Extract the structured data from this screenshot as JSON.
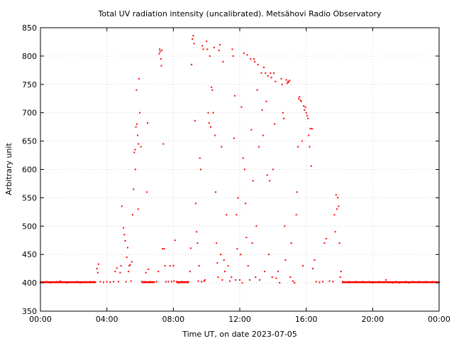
{
  "chart_data": {
    "type": "scatter",
    "title": "Total UV radiation intensity (uncalibrated). Metsähovi Radio Observatory",
    "xlabel": "Time UT, on date 2023-07-05",
    "ylabel": "Arbitrary unit",
    "xlim": [
      "00:00",
      "24:00"
    ],
    "ylim": [
      350,
      850
    ],
    "x_ticks": [
      "00:00",
      "04:00",
      "08:00",
      "12:00",
      "16:00",
      "20:00",
      "00:00"
    ],
    "y_ticks": [
      350,
      400,
      450,
      500,
      550,
      600,
      650,
      700,
      750,
      800,
      850
    ],
    "grid": true,
    "legend": "none",
    "point_color": "#ff0000",
    "series": [
      {
        "x_unit": "hours UT",
        "points": [
          [
            0.0,
            401
          ],
          [
            0.2,
            401
          ],
          [
            0.4,
            402
          ],
          [
            0.6,
            400
          ],
          [
            0.8,
            401
          ],
          [
            1.0,
            402
          ],
          [
            1.2,
            403
          ],
          [
            1.4,
            401
          ],
          [
            1.6,
            400
          ],
          [
            1.8,
            401
          ],
          [
            2.0,
            401
          ],
          [
            2.2,
            402
          ],
          [
            2.4,
            400
          ],
          [
            2.6,
            401
          ],
          [
            2.8,
            401
          ],
          [
            3.0,
            402
          ],
          [
            3.2,
            402
          ],
          [
            3.4,
            425
          ],
          [
            3.45,
            418
          ],
          [
            3.5,
            433
          ],
          [
            3.6,
            402
          ],
          [
            3.8,
            401
          ],
          [
            4.0,
            402
          ],
          [
            4.2,
            401
          ],
          [
            4.4,
            402
          ],
          [
            4.5,
            420
          ],
          [
            4.6,
            426
          ],
          [
            4.7,
            402
          ],
          [
            4.8,
            418
          ],
          [
            4.85,
            430
          ],
          [
            4.9,
            535
          ],
          [
            5.0,
            497
          ],
          [
            5.05,
            485
          ],
          [
            5.1,
            474
          ],
          [
            5.15,
            402
          ],
          [
            5.2,
            445
          ],
          [
            5.25,
            462
          ],
          [
            5.3,
            420
          ],
          [
            5.35,
            430
          ],
          [
            5.4,
            432
          ],
          [
            5.45,
            403
          ],
          [
            5.5,
            437
          ],
          [
            5.55,
            520
          ],
          [
            5.6,
            565
          ],
          [
            5.65,
            630
          ],
          [
            5.7,
            635
          ],
          [
            5.72,
            600
          ],
          [
            5.75,
            675
          ],
          [
            5.78,
            740
          ],
          [
            5.8,
            680
          ],
          [
            5.85,
            660
          ],
          [
            5.88,
            530
          ],
          [
            5.9,
            645
          ],
          [
            5.93,
            760
          ],
          [
            5.98,
            700
          ],
          [
            6.05,
            640
          ],
          [
            6.1,
            402
          ],
          [
            6.2,
            401
          ],
          [
            6.3,
            402
          ],
          [
            6.35,
            418
          ],
          [
            6.4,
            560
          ],
          [
            6.45,
            682
          ],
          [
            6.5,
            424
          ],
          [
            6.6,
            402
          ],
          [
            6.8,
            401
          ],
          [
            7.0,
            402
          ],
          [
            7.1,
            420
          ],
          [
            7.15,
            804
          ],
          [
            7.18,
            812
          ],
          [
            7.2,
            808
          ],
          [
            7.25,
            795
          ],
          [
            7.28,
            783
          ],
          [
            7.3,
            810
          ],
          [
            7.35,
            460
          ],
          [
            7.4,
            645
          ],
          [
            7.45,
            460
          ],
          [
            7.5,
            430
          ],
          [
            7.55,
            402
          ],
          [
            7.7,
            402
          ],
          [
            7.8,
            430
          ],
          [
            7.9,
            402
          ],
          [
            8.0,
            430
          ],
          [
            8.05,
            403
          ],
          [
            8.1,
            475
          ],
          [
            8.2,
            402
          ],
          [
            8.3,
            400
          ],
          [
            8.5,
            402
          ],
          [
            8.7,
            401
          ],
          [
            8.9,
            402
          ],
          [
            9.0,
            420
          ],
          [
            9.05,
            461
          ],
          [
            9.1,
            785
          ],
          [
            9.15,
            830
          ],
          [
            9.2,
            836
          ],
          [
            9.25,
            822
          ],
          [
            9.3,
            686
          ],
          [
            9.35,
            540
          ],
          [
            9.4,
            490
          ],
          [
            9.45,
            470
          ],
          [
            9.5,
            403
          ],
          [
            9.55,
            430
          ],
          [
            9.6,
            620
          ],
          [
            9.65,
            600
          ],
          [
            9.7,
            402
          ],
          [
            9.75,
            818
          ],
          [
            9.8,
            812
          ],
          [
            9.85,
            403
          ],
          [
            9.9,
            405
          ],
          [
            10.0,
            826
          ],
          [
            10.05,
            812
          ],
          [
            10.1,
            700
          ],
          [
            10.15,
            682
          ],
          [
            10.2,
            800
          ],
          [
            10.25,
            675
          ],
          [
            10.3,
            745
          ],
          [
            10.35,
            740
          ],
          [
            10.4,
            700
          ],
          [
            10.45,
            815
          ],
          [
            10.5,
            660
          ],
          [
            10.55,
            560
          ],
          [
            10.6,
            470
          ],
          [
            10.65,
            435
          ],
          [
            10.7,
            410
          ],
          [
            10.75,
            810
          ],
          [
            10.8,
            820
          ],
          [
            10.85,
            450
          ],
          [
            10.9,
            640
          ],
          [
            10.95,
            405
          ],
          [
            11.0,
            790
          ],
          [
            11.05,
            440
          ],
          [
            11.1,
            420
          ],
          [
            11.2,
            520
          ],
          [
            11.3,
            430
          ],
          [
            11.4,
            403
          ],
          [
            11.5,
            410
          ],
          [
            11.55,
            812
          ],
          [
            11.6,
            800
          ],
          [
            11.65,
            655
          ],
          [
            11.7,
            730
          ],
          [
            11.75,
            405
          ],
          [
            11.8,
            520
          ],
          [
            11.85,
            460
          ],
          [
            11.9,
            550
          ],
          [
            12.0,
            405
          ],
          [
            12.05,
            450
          ],
          [
            12.1,
            710
          ],
          [
            12.15,
            400
          ],
          [
            12.2,
            620
          ],
          [
            12.25,
            805
          ],
          [
            12.3,
            600
          ],
          [
            12.35,
            540
          ],
          [
            12.4,
            480
          ],
          [
            12.45,
            802
          ],
          [
            12.5,
            430
          ],
          [
            12.6,
            405
          ],
          [
            12.65,
            795
          ],
          [
            12.7,
            670
          ],
          [
            12.75,
            470
          ],
          [
            12.8,
            580
          ],
          [
            12.85,
            795
          ],
          [
            12.9,
            790
          ],
          [
            12.95,
            410
          ],
          [
            13.0,
            500
          ],
          [
            13.05,
            740
          ],
          [
            13.1,
            785
          ],
          [
            13.15,
            640
          ],
          [
            13.2,
            405
          ],
          [
            13.3,
            770
          ],
          [
            13.35,
            705
          ],
          [
            13.4,
            660
          ],
          [
            13.45,
            780
          ],
          [
            13.5,
            420
          ],
          [
            13.55,
            770
          ],
          [
            13.6,
            720
          ],
          [
            13.65,
            590
          ],
          [
            13.7,
            765
          ],
          [
            13.75,
            450
          ],
          [
            13.8,
            580
          ],
          [
            13.85,
            770
          ],
          [
            13.9,
            762
          ],
          [
            13.95,
            410
          ],
          [
            14.0,
            600
          ],
          [
            14.05,
            770
          ],
          [
            14.1,
            680
          ],
          [
            14.15,
            755
          ],
          [
            14.2,
            408
          ],
          [
            14.3,
            420
          ],
          [
            14.4,
            400
          ],
          [
            14.5,
            760
          ],
          [
            14.55,
            750
          ],
          [
            14.6,
            700
          ],
          [
            14.65,
            690
          ],
          [
            14.7,
            500
          ],
          [
            14.75,
            440
          ],
          [
            14.8,
            758
          ],
          [
            14.85,
            752
          ],
          [
            14.9,
            755
          ],
          [
            14.95,
            754
          ],
          [
            15.0,
            757
          ],
          [
            15.05,
            410
          ],
          [
            15.1,
            470
          ],
          [
            15.2,
            403
          ],
          [
            15.3,
            400
          ],
          [
            15.4,
            520
          ],
          [
            15.45,
            560
          ],
          [
            15.5,
            640
          ],
          [
            15.55,
            725
          ],
          [
            15.6,
            728
          ],
          [
            15.65,
            722
          ],
          [
            15.7,
            720
          ],
          [
            15.75,
            650
          ],
          [
            15.8,
            430
          ],
          [
            15.85,
            712
          ],
          [
            15.9,
            705
          ],
          [
            15.95,
            710
          ],
          [
            16.0,
            700
          ],
          [
            16.05,
            695
          ],
          [
            16.1,
            690
          ],
          [
            16.15,
            660
          ],
          [
            16.2,
            640
          ],
          [
            16.25,
            672
          ],
          [
            16.3,
            606
          ],
          [
            16.35,
            672
          ],
          [
            16.4,
            425
          ],
          [
            16.5,
            440
          ],
          [
            16.6,
            402
          ],
          [
            16.8,
            401
          ],
          [
            17.0,
            402
          ],
          [
            17.1,
            470
          ],
          [
            17.2,
            478
          ],
          [
            17.4,
            403
          ],
          [
            17.6,
            402
          ],
          [
            17.7,
            520
          ],
          [
            17.75,
            490
          ],
          [
            17.8,
            555
          ],
          [
            17.85,
            530
          ],
          [
            17.9,
            550
          ],
          [
            17.95,
            535
          ],
          [
            18.0,
            470
          ],
          [
            18.05,
            410
          ],
          [
            18.1,
            420
          ],
          [
            18.2,
            402
          ],
          [
            18.4,
            401
          ],
          [
            18.6,
            402
          ],
          [
            18.8,
            401
          ],
          [
            19.0,
            402
          ],
          [
            19.2,
            401
          ],
          [
            19.4,
            402
          ],
          [
            19.6,
            401
          ],
          [
            19.8,
            402
          ],
          [
            20.0,
            400
          ],
          [
            20.2,
            401
          ],
          [
            20.4,
            402
          ],
          [
            20.6,
            401
          ],
          [
            20.8,
            405
          ],
          [
            21.0,
            401
          ],
          [
            21.2,
            400
          ],
          [
            21.4,
            402
          ],
          [
            21.6,
            400
          ],
          [
            21.8,
            401
          ],
          [
            22.0,
            402
          ],
          [
            22.2,
            400
          ],
          [
            22.4,
            402
          ],
          [
            22.6,
            401
          ],
          [
            22.8,
            402
          ],
          [
            23.0,
            401
          ],
          [
            23.2,
            402
          ],
          [
            23.4,
            401
          ],
          [
            23.6,
            402
          ],
          [
            23.8,
            401
          ],
          [
            24.0,
            401
          ]
        ]
      }
    ]
  }
}
